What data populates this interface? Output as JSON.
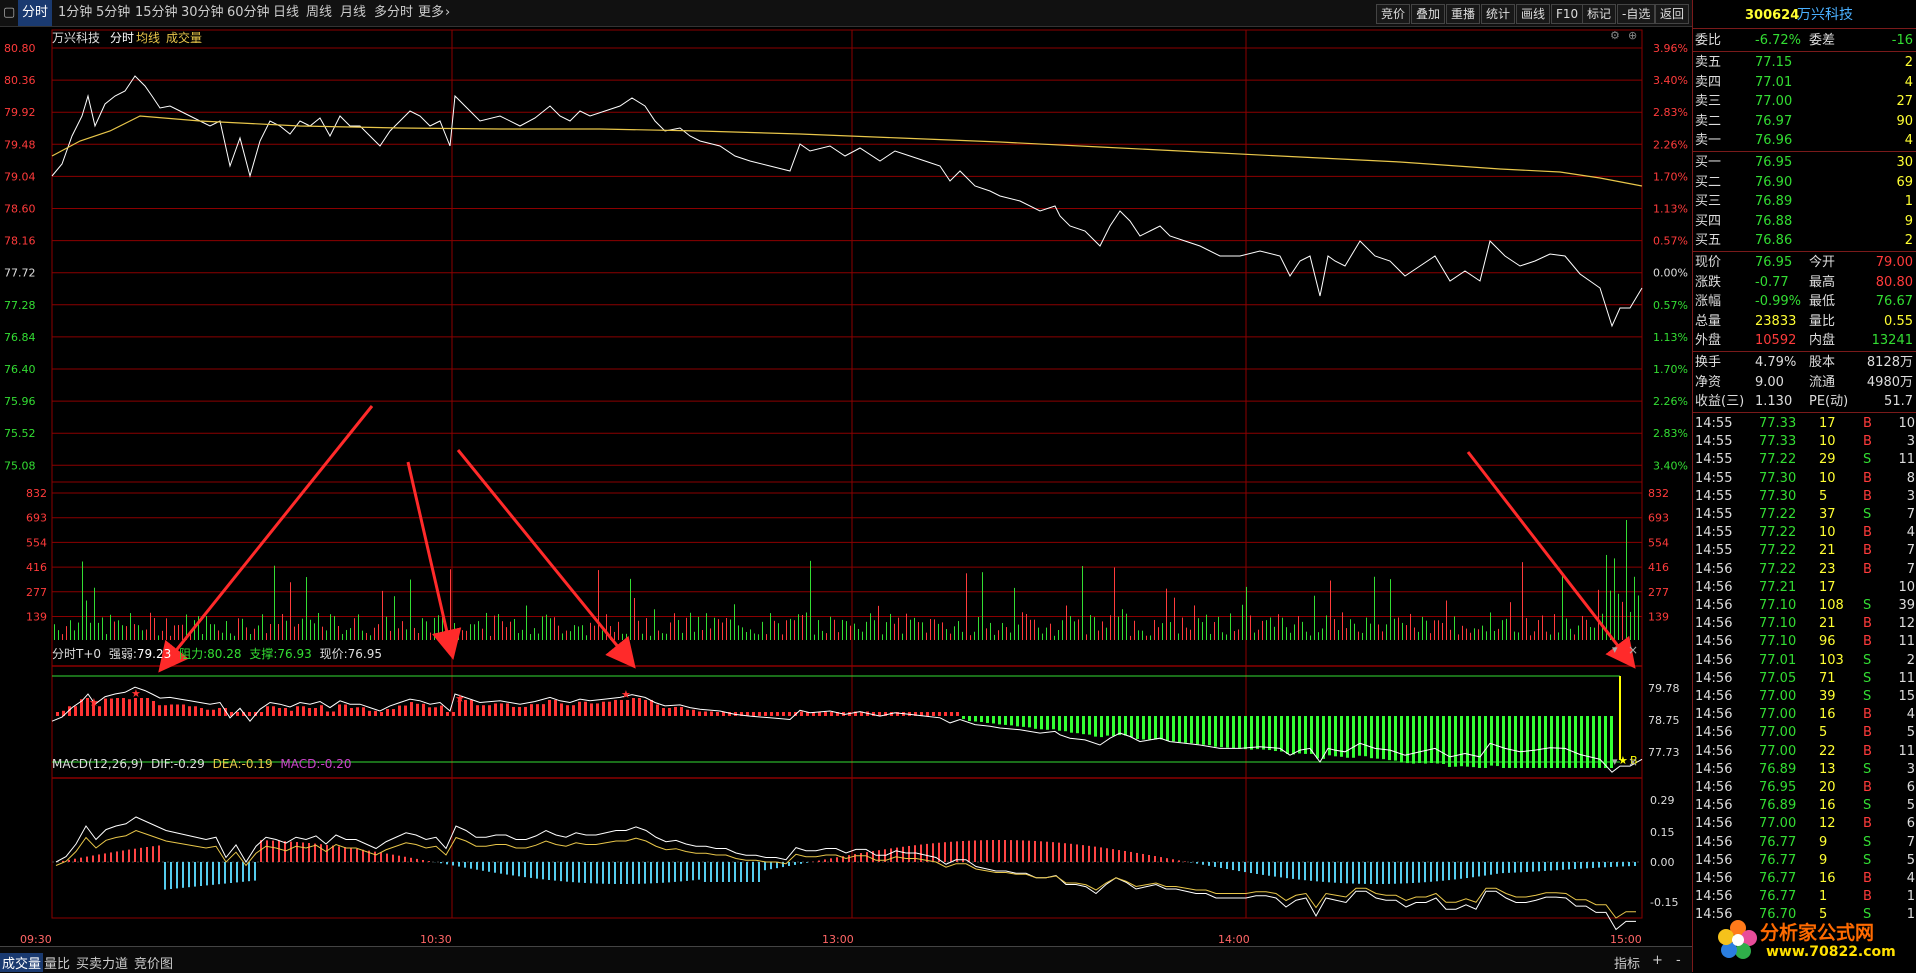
{
  "toolbar": {
    "tabs": [
      "分时",
      "1分钟",
      "5分钟",
      "15分钟",
      "30分钟",
      "60分钟",
      "日线",
      "周线",
      "月线",
      "多分时",
      "更多"
    ],
    "buttons": [
      "竞价",
      "叠加",
      "重播",
      "统计",
      "画线",
      "F10",
      "标记",
      "-自选",
      "返回"
    ]
  },
  "stock": {
    "code": "300624",
    "name": "万兴科技"
  },
  "header_labels": {
    "name": "万兴科技",
    "time": "分时",
    "avg": "均线",
    "vol": "成交量"
  },
  "price_axis": {
    "left": [
      "80.80",
      "80.36",
      "79.92",
      "79.48",
      "79.04",
      "78.60",
      "78.16",
      "77.72",
      "77.28",
      "76.84",
      "76.40",
      "75.96",
      "75.52",
      "75.08"
    ],
    "right": [
      "3.96%",
      "3.40%",
      "2.83%",
      "2.26%",
      "1.70%",
      "1.13%",
      "0.57%",
      "0.00%",
      "0.57%",
      "1.13%",
      "1.70%",
      "2.26%",
      "2.83%",
      "3.40%"
    ]
  },
  "volume_axis": [
    "832",
    "693",
    "554",
    "416",
    "277",
    "139"
  ],
  "t0_panel": {
    "title": "分时T+0",
    "strength_label": "强弱:",
    "strength": "79.23",
    "resist_label": "阻力:",
    "resist": "80.28",
    "support_label": "支撑:",
    "support": "76.93",
    "price_label": "现价:",
    "price": "76.95",
    "axis": [
      "79.78",
      "78.75",
      "77.73"
    ],
    "marker": "B"
  },
  "macd_panel": {
    "title": "MACD(12,26,9)",
    "dif_label": "DIF:",
    "dif": "-0.29",
    "dea_label": "DEA:",
    "dea": "-0.19",
    "macd_label": "MACD:",
    "macd": "-0.20",
    "axis": [
      "0.29",
      "0.15",
      "0.00",
      "-0.15"
    ]
  },
  "time_axis": [
    "09:30",
    "10:30",
    "13:00",
    "14:00",
    "15:00"
  ],
  "panel_icons": [
    "▾",
    "×"
  ],
  "bottom_tabs": [
    "成交量",
    "量比",
    "买卖力道",
    "竞价图"
  ],
  "bottom_right": [
    "指标",
    "+",
    "-"
  ],
  "quote": {
    "wb_label": "委比",
    "wb": "-6.72%",
    "wc_label": "委差",
    "wc": "-16",
    "asks": [
      {
        "label": "卖五",
        "price": "77.15",
        "vol": "2"
      },
      {
        "label": "卖四",
        "price": "77.01",
        "vol": "4"
      },
      {
        "label": "卖三",
        "price": "77.00",
        "vol": "27"
      },
      {
        "label": "卖二",
        "price": "76.97",
        "vol": "90"
      },
      {
        "label": "卖一",
        "price": "76.96",
        "vol": "4"
      }
    ],
    "bids": [
      {
        "label": "买一",
        "price": "76.95",
        "vol": "30"
      },
      {
        "label": "买二",
        "price": "76.90",
        "vol": "69"
      },
      {
        "label": "买三",
        "price": "76.89",
        "vol": "1"
      },
      {
        "label": "买四",
        "price": "76.88",
        "vol": "9"
      },
      {
        "label": "买五",
        "price": "76.86",
        "vol": "2"
      }
    ],
    "stats": [
      {
        "l1": "现价",
        "v1": "76.95",
        "l2": "今开",
        "v2": "79.00"
      },
      {
        "l1": "涨跌",
        "v1": "-0.77",
        "l2": "最高",
        "v2": "80.80"
      },
      {
        "l1": "涨幅",
        "v1": "-0.99%",
        "l2": "最低",
        "v2": "76.67"
      },
      {
        "l1": "总量",
        "v1": "23833",
        "l2": "量比",
        "v2": "0.55"
      },
      {
        "l1": "外盘",
        "v1": "10592",
        "l2": "内盘",
        "v2": "13241"
      }
    ],
    "stats2": [
      {
        "l1": "换手",
        "v1": "4.79%",
        "l2": "股本",
        "v2": "8128万"
      },
      {
        "l1": "净资",
        "v1": "9.00",
        "l2": "流通",
        "v2": "4980万"
      },
      {
        "l1": "收益(三)",
        "v1": "1.130",
        "l2": "PE(动)",
        "v2": "51.7"
      }
    ]
  },
  "ticks": [
    {
      "t": "14:55",
      "p": "77.33",
      "v": "17",
      "d": "B",
      "n": "10"
    },
    {
      "t": "14:55",
      "p": "77.33",
      "v": "10",
      "d": "B",
      "n": "3"
    },
    {
      "t": "14:55",
      "p": "77.22",
      "v": "29",
      "d": "S",
      "n": "11"
    },
    {
      "t": "14:55",
      "p": "77.30",
      "v": "10",
      "d": "B",
      "n": "8"
    },
    {
      "t": "14:55",
      "p": "77.30",
      "v": "5",
      "d": "B",
      "n": "3"
    },
    {
      "t": "14:55",
      "p": "77.22",
      "v": "37",
      "d": "S",
      "n": "7"
    },
    {
      "t": "14:55",
      "p": "77.22",
      "v": "10",
      "d": "B",
      "n": "4"
    },
    {
      "t": "14:55",
      "p": "77.22",
      "v": "21",
      "d": "B",
      "n": "7"
    },
    {
      "t": "14:56",
      "p": "77.22",
      "v": "23",
      "d": "B",
      "n": "7"
    },
    {
      "t": "14:56",
      "p": "77.21",
      "v": "17",
      "d": "",
      "n": "10"
    },
    {
      "t": "14:56",
      "p": "77.10",
      "v": "108",
      "d": "S",
      "n": "39"
    },
    {
      "t": "14:56",
      "p": "77.10",
      "v": "21",
      "d": "B",
      "n": "12"
    },
    {
      "t": "14:56",
      "p": "77.10",
      "v": "96",
      "d": "B",
      "n": "11"
    },
    {
      "t": "14:56",
      "p": "77.01",
      "v": "103",
      "d": "S",
      "n": "2"
    },
    {
      "t": "14:56",
      "p": "77.05",
      "v": "71",
      "d": "S",
      "n": "11"
    },
    {
      "t": "14:56",
      "p": "77.00",
      "v": "39",
      "d": "S",
      "n": "15"
    },
    {
      "t": "14:56",
      "p": "77.00",
      "v": "16",
      "d": "B",
      "n": "4"
    },
    {
      "t": "14:56",
      "p": "77.00",
      "v": "5",
      "d": "B",
      "n": "5"
    },
    {
      "t": "14:56",
      "p": "77.00",
      "v": "22",
      "d": "B",
      "n": "11"
    },
    {
      "t": "14:56",
      "p": "76.89",
      "v": "13",
      "d": "S",
      "n": "3"
    },
    {
      "t": "14:56",
      "p": "76.95",
      "v": "20",
      "d": "B",
      "n": "6"
    },
    {
      "t": "14:56",
      "p": "76.89",
      "v": "16",
      "d": "S",
      "n": "5"
    },
    {
      "t": "14:56",
      "p": "77.00",
      "v": "12",
      "d": "B",
      "n": "6"
    },
    {
      "t": "14:56",
      "p": "76.77",
      "v": "9",
      "d": "S",
      "n": "7"
    },
    {
      "t": "14:56",
      "p": "76.77",
      "v": "9",
      "d": "S",
      "n": "5"
    },
    {
      "t": "14:56",
      "p": "76.77",
      "v": "16",
      "d": "B",
      "n": "4"
    },
    {
      "t": "14:56",
      "p": "76.77",
      "v": "1",
      "d": "B",
      "n": "1"
    },
    {
      "t": "14:56",
      "p": "76.70",
      "v": "5",
      "d": "S",
      "n": "1"
    }
  ],
  "watermark": {
    "title": "分析家公式网",
    "url": "www.70822.com"
  },
  "colors": {
    "up": "#ff3b3b",
    "down": "#33dd33",
    "grid": "#8b0000",
    "price_line": "#ffffff",
    "avg_line": "#e8c64a",
    "highlight": "#ffff00",
    "t0_bar_up": "#ff3333",
    "t0_bar_down": "#33ff33",
    "macd_pos": "#ff4444",
    "macd_neg": "#55ccee"
  }
}
